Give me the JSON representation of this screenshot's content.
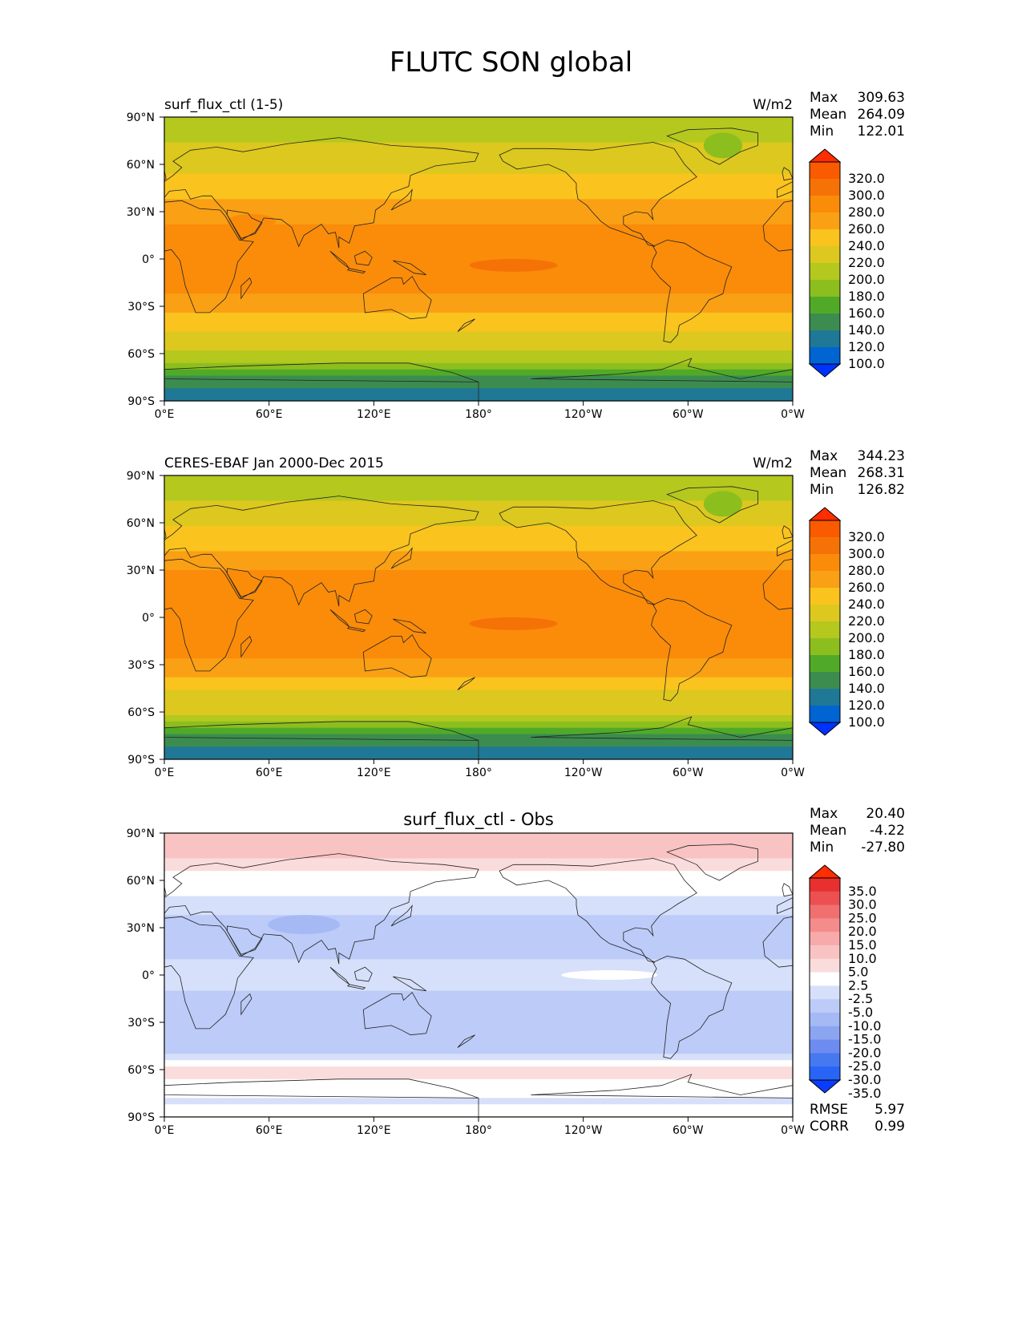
{
  "figure": {
    "title": "FLUTC SON global"
  },
  "colors": {
    "abs_levels": [
      "#0032ff",
      "#0064d2",
      "#1e7896",
      "#3c8c50",
      "#50aa28",
      "#8cbe1e",
      "#b4c81e",
      "#dcc81e",
      "#fac31e",
      "#faa014",
      "#fa8c0a",
      "#f57306",
      "#fa5a00",
      "#ff2d00"
    ],
    "diff_levels": [
      "#0a3cff",
      "#2864f5",
      "#4678f0",
      "#6e8cf0",
      "#8ca5f0",
      "#a5b9f5",
      "#bccbf7",
      "#d7e0fa",
      "#ffffff",
      "#fbdcdc",
      "#f9c3c3",
      "#f8aaaa",
      "#f58c8c",
      "#f07070",
      "#ec5050",
      "#e83030",
      "#ff2d00"
    ],
    "land_line": "#222222"
  },
  "chart_data": [
    {
      "type": "heatmap",
      "left_title": "surf_flux_ctl (1-5)",
      "units": "W/m2",
      "x_ticks": [
        "0°E",
        "60°E",
        "120°E",
        "180°",
        "120°W",
        "60°W",
        "0°W"
      ],
      "y_ticks": [
        "90°N",
        "60°N",
        "30°N",
        "0°",
        "30°S",
        "60°S",
        "90°S"
      ],
      "xlim": [
        0,
        360
      ],
      "ylim": [
        -90,
        90
      ],
      "stats": [
        {
          "label": "Max",
          "value": "309.63"
        },
        {
          "label": "Mean",
          "value": "264.09"
        },
        {
          "label": "Min",
          "value": "122.01"
        }
      ],
      "colorbar": {
        "levels": [
          "320.0",
          "300.0",
          "280.0",
          "260.0",
          "240.0",
          "220.0",
          "200.0",
          "180.0",
          "160.0",
          "140.0",
          "120.0",
          "100.0"
        ],
        "extend": "both"
      },
      "zonal_profile": {
        "lat": [
          90,
          80,
          70,
          60,
          50,
          40,
          30,
          20,
          10,
          0,
          -10,
          -20,
          -30,
          -40,
          -50,
          -60,
          -65,
          -70,
          -80,
          -90
        ],
        "value": [
          205,
          212,
          222,
          232,
          245,
          258,
          272,
          285,
          292,
          288,
          290,
          283,
          268,
          250,
          232,
          218,
          205,
          180,
          140,
          130
        ]
      }
    },
    {
      "type": "heatmap",
      "left_title": "CERES-EBAF Jan 2000-Dec 2015",
      "units": "W/m2",
      "x_ticks": [
        "0°E",
        "60°E",
        "120°E",
        "180°",
        "120°W",
        "60°W",
        "0°W"
      ],
      "y_ticks": [
        "90°N",
        "60°N",
        "30°N",
        "0°",
        "30°S",
        "60°S",
        "90°S"
      ],
      "xlim": [
        0,
        360
      ],
      "ylim": [
        -90,
        90
      ],
      "stats": [
        {
          "label": "Max",
          "value": "344.23"
        },
        {
          "label": "Mean",
          "value": "268.31"
        },
        {
          "label": "Min",
          "value": "126.82"
        }
      ],
      "colorbar": {
        "levels": [
          "320.0",
          "300.0",
          "280.0",
          "260.0",
          "240.0",
          "220.0",
          "200.0",
          "180.0",
          "160.0",
          "140.0",
          "120.0",
          "100.0"
        ],
        "extend": "both"
      },
      "zonal_profile": {
        "lat": [
          90,
          80,
          70,
          60,
          50,
          40,
          30,
          20,
          10,
          0,
          -10,
          -20,
          -30,
          -40,
          -50,
          -60,
          -65,
          -70,
          -80,
          -90
        ],
        "value": [
          208,
          215,
          225,
          236,
          250,
          265,
          282,
          292,
          296,
          292,
          294,
          288,
          272,
          254,
          236,
          222,
          208,
          185,
          142,
          132
        ]
      }
    },
    {
      "type": "heatmap",
      "center_title": "surf_flux_ctl - Obs",
      "x_ticks": [
        "0°E",
        "60°E",
        "120°E",
        "180°",
        "120°W",
        "60°W",
        "0°W"
      ],
      "y_ticks": [
        "90°N",
        "60°N",
        "30°N",
        "0°",
        "30°S",
        "60°S",
        "90°S"
      ],
      "xlim": [
        0,
        360
      ],
      "ylim": [
        -90,
        90
      ],
      "stats": [
        {
          "label": "Max",
          "value": "20.40"
        },
        {
          "label": "Mean",
          "value": "-4.22"
        },
        {
          "label": "Min",
          "value": "-27.80"
        }
      ],
      "extra_stats": [
        {
          "label": "RMSE",
          "value": "5.97"
        },
        {
          "label": "CORR",
          "value": "0.99"
        }
      ],
      "colorbar": {
        "levels": [
          "35.0",
          "30.0",
          "25.0",
          "20.0",
          "15.0",
          "10.0",
          "5.0",
          "2.5",
          "-2.5",
          "-5.0",
          "-10.0",
          "-15.0",
          "-20.0",
          "-25.0",
          "-30.0",
          "-35.0"
        ],
        "extend": "both"
      },
      "zonal_profile": {
        "lat": [
          90,
          80,
          70,
          60,
          50,
          40,
          30,
          20,
          10,
          0,
          -10,
          -20,
          -30,
          -40,
          -50,
          -55,
          -60,
          -65,
          -70,
          -80,
          -90
        ],
        "value": [
          8,
          7,
          4,
          1,
          -2,
          -5,
          -6,
          -6,
          -5,
          -4,
          -5,
          -6,
          -7,
          -7,
          -5,
          0,
          4,
          3,
          0,
          -3,
          -1
        ]
      }
    }
  ]
}
